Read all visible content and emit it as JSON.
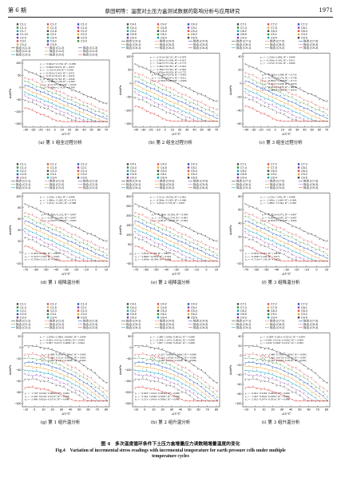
{
  "header": {
    "left": "第 6 期",
    "center": "蔡田明等：温度对土压力盒测试数据的影响分析与应用研究",
    "right": "1971"
  },
  "panels": [
    {
      "caption": "(a) 第 1 组全过程分析",
      "xlabel": "ΔT/℃",
      "ylabel": "Δσ/kPa",
      "xticks": [
        "−40",
        "−30",
        "−20",
        "−10",
        "0",
        "10",
        "20",
        "30",
        "40",
        "50",
        "60",
        "70"
      ],
      "yticks": [
        "100",
        "50",
        "0",
        "−50",
        "−100",
        "−150"
      ],
      "legend": [
        "C1-1",
        "C1-2",
        "C1-3",
        "C1-4",
        "C1-5",
        "C1-6",
        "C1-7",
        "C1-8",
        "C1-9",
        "C1-10",
        "C2-1",
        "C2-2",
        "C2-3",
        "C2-4",
        "C2-5",
        "C3-1",
        "C3-2",
        "C3-3",
        "C3-4",
        "C3-5"
      ],
      "fits": [
        "拟合 (C1-1)",
        "拟合 (C1-2)",
        "拟合 (C1-3)",
        "拟合 (C2-1)",
        "拟合 (C2-2)",
        "拟合 (C2-3)",
        "拟合 (C3-1)",
        "拟合 (C3-2)",
        "拟合 (C3-3)"
      ],
      "eqs_top": [
        "y₁ = −0.842x+13.792, R² = 0.985",
        "y₂ = −0.864x+8.072, R² = 0.937",
        "y₃ = −1.13x+9.104, R² = 0.958",
        "y₄ = −0.932x+3.423, R² = 0.931",
        "y₅ = −0.971x+6.515, R² = 0.953",
        "y₆ = −1.019x+6.781, R² = 0.949"
      ],
      "eqs_bot": [
        "y₇ = −0.486x+1.96, R² = 0.945",
        "y₈ = −0.517x+1.863, R² = 0.934",
        "y₉ = −0.608x+1.79, R² = 0.939"
      ]
    },
    {
      "caption": "(b) 第 2 组全过程分析",
      "xlabel": "ΔT/℃",
      "ylabel": "Δσ/kPa",
      "xticks": [
        "−40",
        "−30",
        "−20",
        "−10",
        "0",
        "10",
        "20",
        "30",
        "40",
        "50",
        "60",
        "70"
      ],
      "yticks": [
        "100",
        "50",
        "0",
        "−50",
        "−100",
        "−150"
      ],
      "legend": [
        "C4-1",
        "C4-2",
        "C4-3",
        "C4-4",
        "C4-5",
        "C5-1",
        "C5-2",
        "C5-3",
        "C5-4",
        "C5-5",
        "C6-1",
        "C6-2",
        "C6-3",
        "C6-4",
        "C6-5"
      ],
      "fits": [
        "拟合 (C4-1)",
        "拟合 (C4-2)",
        "拟合 (C4-3)",
        "拟合 (C5-1)",
        "拟合 (C5-2)",
        "拟合 (C5-3)",
        "拟合 (C6-1)",
        "拟合 (C6-2)",
        "拟合 (C6-3)"
      ],
      "eqs_top": [
        "y₁ = −2.531x+26.515, R² = 0.879",
        "y₂ = −2.945x+25.458, R² = 0.815",
        "y₃ = −3.947x+37.156, R² = 0.773",
        "y₄ = −2.465x+20.307, R² = 0.823",
        "y₅ = −2.786x+23.381, R² = 0.803",
        "y₆ = −2.876x+29.076, R² = 0.757"
      ],
      "eqs_bot": [
        "y₇ = −2.159x+6.076, R² = 0.905",
        "y₈ = −2.424x+9.873, R² = 0.911",
        "y₉ = −2.504x+9.695, R² = 0.906"
      ]
    },
    {
      "caption": "(c) 第 3 组全过程分析",
      "xlabel": "ΔT/℃",
      "ylabel": "Δσ/kPa",
      "xticks": [
        "−40",
        "−30",
        "−20",
        "−10",
        "0",
        "10",
        "20",
        "30",
        "40",
        "50",
        "60",
        "70"
      ],
      "yticks": [
        "40",
        "20",
        "0",
        "−20",
        "−40",
        "−60"
      ],
      "legend": [
        "C7-1",
        "C7-2",
        "C7-3",
        "C7-4",
        "C7-5",
        "C8-1",
        "C8-2",
        "C8-3",
        "C8-4",
        "C8-5",
        "C9-1",
        "C9-2",
        "C9-3",
        "C9-4",
        "C9-5"
      ],
      "fits": [
        "拟合 (C7-1)",
        "拟合 (C7-2)",
        "拟合 (C7-3)",
        "拟合 (C8-1)",
        "拟合 (C8-2)",
        "拟合 (C8-3)",
        "拟合 (C9-1)",
        "拟合 (C9-2)",
        "拟合 (C9-3)"
      ],
      "eqs_top": [
        "y₁ = −1.219x+1.883, R² = 0.849",
        "y₂ = −0.244x−0.302, R² = 0.911",
        "y₃ = −1.375x−0.191, R² = 0.900"
      ],
      "eqs_bot": [
        "y₄ = −0.592x+1.098, R² = 0.733",
        "y₅ = −0.772x−0.576, R² = 0.749",
        "y₆ = −0.892x−0.164, R² = 0.713",
        "y₇ = −0.837x+2.938, R² = 0.876",
        "y₈ = −0.932x+3.078, R² = 0.910",
        "y₉ = −1.028x+3.883, R² = 0.916"
      ]
    },
    {
      "caption": "(d) 第 1 组降温分析",
      "xlabel": "ΔT/℃",
      "ylabel": "Δσ/kPa",
      "xticks": [
        "−70",
        "−60",
        "−50",
        "−40",
        "−30",
        "−20",
        "−10",
        "0",
        "10"
      ],
      "yticks": [
        "100",
        "80",
        "60",
        "40",
        "20",
        "0",
        "−20"
      ],
      "legend": [
        "C1-1",
        "C1-2",
        "C1-3",
        "C1-4",
        "C1-5",
        "C2-1",
        "C2-2",
        "C2-3",
        "C2-4",
        "C2-5",
        "C3-1",
        "C3-2",
        "C3-3",
        "C3-4",
        "C3-5"
      ],
      "fits": [
        "拟合 (C1-1)",
        "拟合 (C1-2)",
        "拟合 (C1-3)",
        "拟合 (C2-1)",
        "拟合 (C2-2)",
        "拟合 (C2-3)",
        "拟合 (C3-1)",
        "拟合 (C3-2)",
        "拟合 (C3-3)"
      ],
      "eqs_top": [
        "y₁ = −1.104x−1.061, R² = 0.998",
        "y₂ = −1.380x−11.282, R² = 0.974",
        "y₃ = −1.431x−12.201, R² = 0.988"
      ],
      "eqs_mid": [
        "y₄ = −0.970x+2.232, R² = 0.997",
        "y₅ = −0.987x+2.665, R² = 0.997",
        "y₆ = −1.010x+3.185, R² = 0.995"
      ],
      "eqs_bot": [
        "y₇ = −0.403x+1.882, R² = 0.950",
        "y₈ = −0.537x+1.003, R² = 0.993",
        "y₉ = −0.578x+3.213, R² = 0.992"
      ]
    },
    {
      "caption": "(e) 第 2 组降温分析",
      "xlabel": "ΔT/℃",
      "ylabel": "Δσ/kPa",
      "xticks": [
        "−70",
        "−60",
        "−50",
        "−40",
        "−30",
        "−20",
        "−10",
        "0",
        "10"
      ],
      "yticks": [
        "300",
        "250",
        "200",
        "150",
        "100",
        "50",
        "0",
        "−50"
      ],
      "legend": [
        "C4-1",
        "C4-2",
        "C4-3",
        "C4-4",
        "C4-5",
        "C5-1",
        "C5-2",
        "C5-3",
        "C5-4",
        "C5-5",
        "C6-1",
        "C6-2",
        "C6-3",
        "C6-4",
        "C6-5"
      ],
      "fits": [
        "拟合 (C4-1)",
        "拟合 (C4-2)",
        "拟合 (C4-3)",
        "拟合 (C5-1)",
        "拟合 (C5-2)",
        "拟合 (C5-3)",
        "拟合 (C6-1)",
        "拟合 (C6-2)",
        "拟合 (C6-3)"
      ],
      "eqs_top": [
        "y₁ = −3.511x−18.016, R² = 0.961",
        "y₂ = −4.596x−31.403, R² = 0.966",
        "y₃ = −4.031x−5.733, R² = 0.997"
      ],
      "eqs_mid": [
        "y₄ = −3.389x−10.816, R² = 0.994",
        "y₅ = −3.411x−11.570, R² = 0.993",
        "y₆ = −3.801x−11.597, R² = 0.994"
      ],
      "eqs_bot": [
        "y₇ = −2.814x−5.744, R² = 0.997",
        "y₈ = −3.866x−24.854, R² = 0.992",
        "y₉ = −3.004x−16.394, R² = 0.988"
      ]
    },
    {
      "caption": "(f) 第 3 组降温分析",
      "xlabel": "ΔT/℃",
      "ylabel": "Δσ/kPa",
      "xticks": [
        "−70",
        "−60",
        "−50",
        "−40",
        "−30",
        "−20",
        "−10",
        "0",
        "10"
      ],
      "yticks": [
        "80",
        "60",
        "40",
        "20",
        "0",
        "−20"
      ],
      "legend": [
        "C7-1",
        "C7-2",
        "C7-3",
        "C7-4",
        "C7-5",
        "C8-1",
        "C8-2",
        "C8-3",
        "C8-4",
        "C8-5",
        "C9-1",
        "C9-2",
        "C9-3",
        "C9-4",
        "C9-5"
      ],
      "fits": [
        "拟合 (C7-1)",
        "拟合 (C7-2)",
        "拟合 (C7-3)",
        "拟合 (C8-1)",
        "拟合 (C8-2)",
        "拟合 (C8-3)",
        "拟合 (C9-1)",
        "拟合 (C9-2)",
        "拟合 (C9-3)"
      ],
      "eqs_top": [
        "y₁ = −1.133x−7.092, R² = 0.988",
        "y₂ = −1.430x−11.640, R² = 0.969",
        "y₃ = −1.485x−13.564, R² = 0.983"
      ],
      "eqs_mid": [
        "y₄ = −0.952x+0.072, R² = 0.997",
        "y₅ = −0.834x−0.087, R² = 0.997",
        "y₆ = −0.876x+0.175, R² = 0.994"
      ],
      "eqs_bot": [
        "y₇ = −0.643x−0.013, R² = 0.978",
        "y₈ = −0.638x+1.446, R² = 0.971",
        "y₉ = −0.713x+7.156, R² = 0.950"
      ]
    },
    {
      "caption": "(g) 第 1 组升温分析",
      "xlabel": "ΔT/℃",
      "ylabel": "Δσ/kPa",
      "xticks": [
        "−10",
        "0",
        "10",
        "20",
        "30",
        "40",
        "50",
        "60",
        "70",
        "80"
      ],
      "yticks": [
        "20",
        "0",
        "−20",
        "−40",
        "−60",
        "−80",
        "−100"
      ],
      "legend": [
        "C1-1",
        "C1-2",
        "C1-3",
        "C1-4",
        "C1-5",
        "C2-1",
        "C2-2",
        "C2-3",
        "C2-4",
        "C2-5",
        "C3-1",
        "C3-2",
        "C3-3",
        "C3-4",
        "C3-5"
      ],
      "fits": [
        "拟合 (C1-1)",
        "拟合 (C1-2)",
        "拟合 (C1-3)",
        "拟合 (C2-1)",
        "拟合 (C2-2)",
        "拟合 (C2-3)",
        "拟合 (C3-1)",
        "拟合 (C3-2)",
        "拟合 (C3-3)"
      ],
      "eqs_top": [
        "y₁ = −1.059x−0.380x−0.008x², R² = 0.994",
        "y₂ = −0.902−0.413x−0.009x², R² = 0.994",
        "y₃ = −0.867−0.437x−0.008x², R² = 0.994"
      ],
      "eqs_mid": [
        "y₄ = −0.468−0.193x−0.006x², R² = 0.995",
        "y₅ = −0.285−0.112x−0.006x², R² = 0.995",
        "y₆ = −0.283−0.131x−0.006x², R² = 0.995"
      ],
      "eqs_bot": [
        "y₇ = −1.728−0.030x−0.009x², R² = 0.984",
        "y₈ = −2.326−0.010x−0.017x², R² = 0.990",
        "y₉ = −2.406−0.002x−0.017x², R² = 0.990"
      ]
    },
    {
      "caption": "(h) 第 2 组升温分析",
      "xlabel": "ΔT/℃",
      "ylabel": "Δσ/kPa",
      "xticks": [
        "−10",
        "0",
        "10",
        "20",
        "30",
        "40",
        "50",
        "60",
        "70",
        "80"
      ],
      "yticks": [
        "50",
        "0",
        "−50",
        "−100",
        "−150",
        "−200",
        "−250"
      ],
      "legend": [
        "C4-1",
        "C4-2",
        "C4-3",
        "C4-4",
        "C4-5",
        "C5-1",
        "C5-2",
        "C5-3",
        "C5-4",
        "C5-5",
        "C6-1",
        "C6-2",
        "C6-3",
        "C6-4",
        "C6-5"
      ],
      "fits": [
        "拟合 (C4-1)",
        "拟合 (C4-2)",
        "拟合 (C4-3)",
        "拟合 (C5-1)",
        "拟合 (C5-2)",
        "拟合 (C5-3)",
        "拟合 (C6-1)",
        "拟合 (C6-2)",
        "拟合 (C6-3)"
      ],
      "eqs_top": [
        "y₁ = −1.386−1.046x−0.061x², R² = 0.998",
        "y₂ = −0.294−1.197x−0.063x², R² = 0.998",
        "y₃ = −1.097−1.238x−0.054x², R² = 0.998"
      ],
      "eqs_mid": [
        "y₄ = −5.225−3.066x−0.036x², R² = 0.996",
        "y₅ = −3.214−2.956x−0.057x², R² = 0.996",
        "y₆ = −3.248−3.074x−0.034x², R² = 0.996"
      ],
      "eqs_bot": [
        "y₇ = −6.818−1.932x−0.054x², R² = 0.998",
        "y₈ = −5.344−1.849x−0.030x², R² = 0.998",
        "y₉ = −3.213−1.943x−0.058x², R² = 0.992"
      ]
    },
    {
      "caption": "(i) 第 3 组升温分析",
      "xlabel": "ΔT/℃",
      "ylabel": "Δσ/kPa",
      "xticks": [
        "−10",
        "0",
        "10",
        "20",
        "30",
        "40",
        "50",
        "60",
        "70",
        "80"
      ],
      "yticks": [
        "40",
        "20",
        "0",
        "−20",
        "−40",
        "−60",
        "−80",
        "−100"
      ],
      "legend": [
        "C7-1",
        "C7-2",
        "C7-3",
        "C7-4",
        "C7-5",
        "C8-1",
        "C8-2",
        "C8-3",
        "C8-4",
        "C8-5",
        "C9-1",
        "C9-2",
        "C9-3",
        "C9-4",
        "C9-5"
      ],
      "fits": [
        "拟合 (C7-1)",
        "拟合 (C7-2)",
        "拟合 (C7-3)",
        "拟合 (C8-1)",
        "拟合 (C8-2)",
        "拟合 (C8-3)",
        "拟合 (C9-1)",
        "拟合 (C9-2)",
        "拟合 (C9-3)"
      ],
      "eqs_top": [
        "y₁ = −0.909−0.181x−0.021x², R² = 0.994",
        "y₂ = 0.856−0.253x−0.016x², R² = 0.994",
        "y₃ = 1.934−0.340x−0.015x², R² = 0.993"
      ],
      "eqs_mid": [
        "y₄ = −1.486−0.749x−0.020x², R² = 0.993",
        "y₅ = −1.202−0.673x−0.021x², R² = 0.997",
        "y₆ = −0.342−0.658x−0.021x², R² = 0.995"
      ],
      "eqs_bot": [
        "y₇ = −0.661−0.328x−0.023x², R² = 0.996",
        "y₈ = −1.587−0.304x−0.030x², R² = 0.996",
        "y₉ = −2.922−0.247x−0.031x², R² = 0.996"
      ]
    }
  ],
  "figure_caption": {
    "zh": "图 4　多次温度循环条件下土压力盒增量应力读数随增量温度的变化",
    "en1": "Fig.4　Variation of incremental stress readings with incremental temperature for earth pressure cells under multiple",
    "en2": "temperature cycles"
  },
  "colors": {
    "line1": "#4d4d4d",
    "line2": "#d9534f",
    "line3": "#2f5cbf",
    "line4": "#3c8d3c",
    "line5": "#e6a23c",
    "line6": "#8e44ad",
    "line7": "#17a2b8"
  }
}
